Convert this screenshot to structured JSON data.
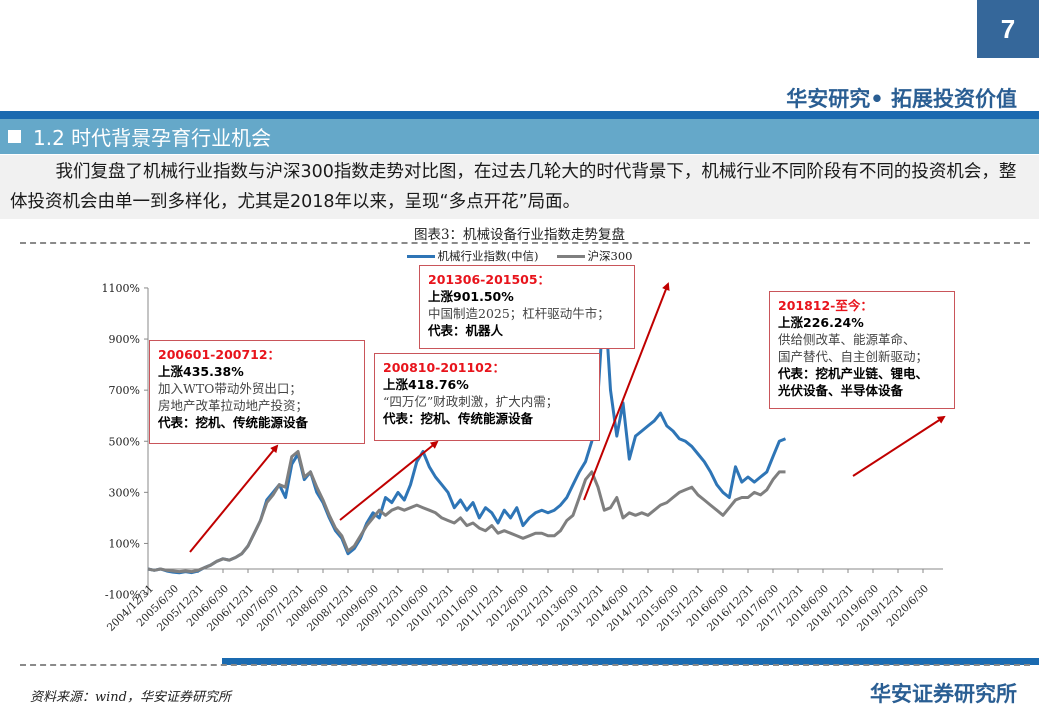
{
  "header": {
    "page_number": "7",
    "slogan": "华安研究• 拓展投资价值"
  },
  "section": {
    "title": "1.2 时代背景孕育行业机会"
  },
  "intro": {
    "text": "我们复盘了机械行业指数与沪深300指数走势对比图，在过去几轮大的时代背景下，机械行业不同阶段有不同的投资机会，整体投资机会由单一到多样化，尤其是2018年以来，呈现“多点开花”局面。"
  },
  "figure": {
    "title": "图表3：机械设备行业指数走势复盘",
    "source": "资料来源：wind，华安证券研究所"
  },
  "footer": {
    "brand": "华安证券研究所"
  },
  "colors": {
    "machinery": "#2e75b6",
    "hs300": "#7f7f7f",
    "arrow": "#c00000",
    "annotation_border": "#c9555a",
    "annotation_heading": "#e8141c",
    "brand_blue": "#2a5e93",
    "bar_blue": "#1a6ab0",
    "section_bg": "#65a8c9"
  },
  "annotations": [
    {
      "period": "200601-200712：",
      "gain": "上涨435.38%",
      "drivers": [
        "加入WTO带动外贸出口；",
        "房地产改革拉动地产投资；"
      ],
      "representatives": "代表：挖机、传统能源设备"
    },
    {
      "period": "200810-201102：",
      "gain": "上涨418.76%",
      "drivers": [
        "“四万亿”财政刺激，扩大内需；"
      ],
      "representatives": "代表：挖机、传统能源设备"
    },
    {
      "period": "201306-201505：",
      "gain": "上涨901.50%",
      "drivers": [
        "中国制造2025；杠杆驱动牛市；"
      ],
      "representatives": "代表：机器人"
    },
    {
      "period": "201812-至今：",
      "gain": "上涨226.24%",
      "drivers": [
        "供给侧改革、能源革命、",
        "国产替代、自主创新驱动；"
      ],
      "representatives": [
        "代表：挖机产业链、锂电、",
        "光伏设备、半导体设备"
      ]
    }
  ],
  "chart_data": {
    "type": "line",
    "title": "图表3：机械设备行业指数走势复盘",
    "xlabel": "",
    "ylabel": "",
    "ylim": [
      -100,
      1100
    ],
    "yticks": [
      "1100%",
      "900%",
      "700%",
      "500%",
      "300%",
      "100%",
      "-100%"
    ],
    "grid": false,
    "legend_position": "top",
    "x_tick_labels": [
      "2004/12/31",
      "2005/6/30",
      "2005/12/31",
      "2006/6/30",
      "2006/12/31",
      "2007/6/30",
      "2007/12/31",
      "2008/6/30",
      "2008/12/31",
      "2009/6/30",
      "2009/12/31",
      "2010/6/30",
      "2010/12/31",
      "2011/6/30",
      "2011/12/31",
      "2012/6/30",
      "2012/12/31",
      "2013/6/30",
      "2013/12/31",
      "2014/6/30",
      "2014/12/31",
      "2015/6/30",
      "2015/12/31",
      "2016/6/30",
      "2016/12/31",
      "2017/6/30",
      "2017/12/31",
      "2018/6/30",
      "2018/12/31",
      "2019/6/30",
      "2019/12/31",
      "2020/6/30"
    ],
    "x_index": [
      0,
      0.25,
      0.5,
      0.75,
      1,
      1.25,
      1.5,
      1.75,
      2,
      2.25,
      2.5,
      2.75,
      3,
      3.25,
      3.5,
      3.75,
      4,
      4.25,
      4.5,
      4.75,
      5,
      5.25,
      5.5,
      5.75,
      6,
      6.25,
      6.5,
      6.75,
      7,
      7.25,
      7.5,
      7.75,
      8,
      8.25,
      8.5,
      8.75,
      9,
      9.25,
      9.5,
      9.75,
      10,
      10.25,
      10.5,
      10.75,
      11,
      11.25,
      11.5,
      11.75,
      12,
      12.25,
      12.5,
      12.75,
      13,
      13.25,
      13.5,
      13.75,
      14,
      14.25,
      14.5,
      14.75,
      15,
      15.25,
      15.5,
      15.75,
      16,
      16.25,
      16.5,
      16.75,
      17,
      17.25,
      17.5,
      17.75,
      18,
      18.25,
      18.5,
      18.75,
      19,
      19.25,
      19.5,
      19.75,
      20,
      20.25,
      20.5,
      20.75,
      21,
      21.25,
      21.5,
      21.75,
      22,
      22.25,
      22.5,
      22.75,
      23,
      23.25,
      23.5,
      23.75,
      24,
      24.25,
      24.5,
      24.75,
      25,
      25.25,
      25.5,
      25.75,
      26,
      26.25,
      26.5,
      26.75,
      27,
      27.25,
      27.5,
      27.75,
      28,
      28.25,
      28.5,
      28.75,
      29,
      29.25,
      29.5,
      29.75,
      30,
      30.25,
      30.5,
      30.75,
      31,
      31.25,
      31.5,
      31.75
    ],
    "series": [
      {
        "name": "机械行业指数(中信)",
        "values": [
          0,
          -5,
          0,
          -8,
          -12,
          -15,
          -10,
          -14,
          -8,
          5,
          15,
          30,
          40,
          35,
          45,
          60,
          90,
          140,
          190,
          270,
          300,
          330,
          280,
          410,
          450,
          350,
          380,
          300,
          260,
          200,
          150,
          120,
          60,
          80,
          120,
          180,
          220,
          200,
          280,
          260,
          300,
          270,
          330,
          420,
          460,
          400,
          360,
          330,
          300,
          240,
          270,
          230,
          260,
          200,
          240,
          220,
          180,
          230,
          200,
          240,
          170,
          200,
          220,
          230,
          220,
          230,
          250,
          280,
          330,
          380,
          420,
          500,
          680,
          1080,
          700,
          520,
          650,
          430,
          520,
          540,
          560,
          580,
          610,
          560,
          540,
          510,
          500,
          480,
          450,
          420,
          380,
          330,
          300,
          280,
          400,
          340,
          360,
          340,
          360,
          380,
          440,
          500,
          510
        ]
      },
      {
        "name": "沪深300",
        "values": [
          0,
          -5,
          0,
          -5,
          -8,
          -10,
          -8,
          -10,
          -5,
          5,
          15,
          30,
          40,
          35,
          45,
          60,
          90,
          140,
          190,
          260,
          290,
          330,
          320,
          440,
          460,
          360,
          380,
          320,
          270,
          210,
          160,
          130,
          70,
          90,
          130,
          170,
          200,
          230,
          210,
          230,
          240,
          230,
          240,
          250,
          240,
          230,
          220,
          200,
          190,
          180,
          200,
          170,
          180,
          160,
          150,
          170,
          140,
          150,
          140,
          130,
          120,
          130,
          140,
          140,
          130,
          130,
          150,
          190,
          210,
          280,
          350,
          380,
          320,
          230,
          240,
          280,
          200,
          220,
          210,
          220,
          210,
          230,
          250,
          260,
          280,
          300,
          310,
          320,
          290,
          270,
          250,
          230,
          210,
          240,
          270,
          280,
          280,
          300,
          290,
          310,
          350,
          380,
          380
        ]
      }
    ]
  }
}
